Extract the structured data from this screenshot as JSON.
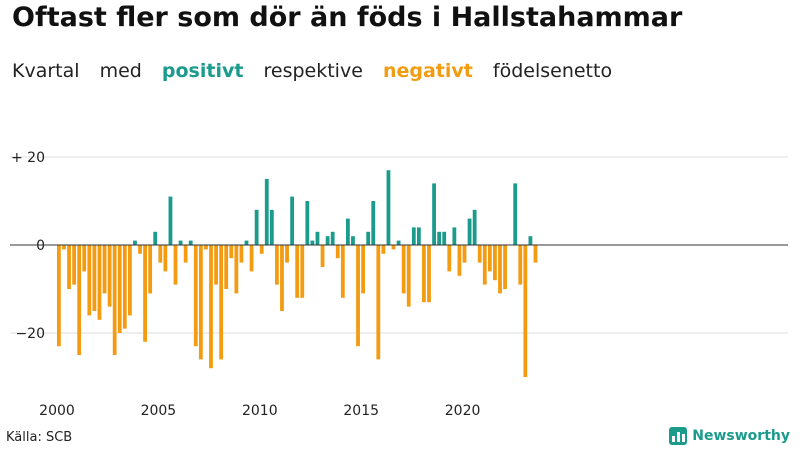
{
  "title": "Oftast fler som dör än föds i Hallstahammar",
  "subtitle": {
    "words": [
      "Kvartal",
      "med",
      "positivt",
      "respektive",
      "negativt",
      "födelsenetto"
    ],
    "positive_word_index": 2,
    "negative_word_index": 4
  },
  "source": "Källa: SCB",
  "brand": "Newsworthy",
  "colors": {
    "positive": "#1a9b8c",
    "negative": "#f39c12",
    "grid": "#dddddd",
    "axis": "#333333"
  },
  "chart_data": {
    "type": "bar",
    "title": "Oftast fler som dör än föds i Hallstahammar",
    "xlabel": "",
    "ylabel": "",
    "ylim": [
      -31,
      20
    ],
    "y_ticks": [
      {
        "value": 20,
        "label": "+ 20"
      },
      {
        "value": 0,
        "label": "0"
      },
      {
        "value": -20,
        "label": "−20"
      }
    ],
    "x_ticks": [
      {
        "label": "2000",
        "index": 0
      },
      {
        "label": "2005",
        "index": 20
      },
      {
        "label": "2010",
        "index": 40
      },
      {
        "label": "2015",
        "index": 60
      },
      {
        "label": "2020",
        "index": 80
      }
    ],
    "start": "2000 Q1",
    "frequency": "quarter",
    "values": [
      -23,
      -1,
      -10,
      -9,
      -25,
      -6,
      -16,
      -15,
      -17,
      -11,
      -14,
      -25,
      -20,
      -19,
      -16,
      1,
      -2,
      -22,
      -11,
      3,
      -4,
      -6,
      11,
      -9,
      1,
      -4,
      1,
      -23,
      -26,
      -1,
      -28,
      -9,
      -26,
      -10,
      -3,
      -11,
      -4,
      1,
      -6,
      8,
      -2,
      15,
      8,
      -9,
      -15,
      -4,
      11,
      -12,
      -12,
      10,
      1,
      3,
      -5,
      2,
      3,
      -3,
      -12,
      6,
      2,
      -23,
      -11,
      3,
      10,
      -26,
      -2,
      17,
      -1,
      1,
      -11,
      -14,
      4,
      4,
      -13,
      -13,
      14,
      3,
      3,
      -6,
      4,
      -7,
      -4,
      6,
      8,
      -4,
      -9,
      -6,
      -8,
      -11,
      -10,
      0,
      14,
      -9,
      -30,
      2,
      -4
    ]
  }
}
